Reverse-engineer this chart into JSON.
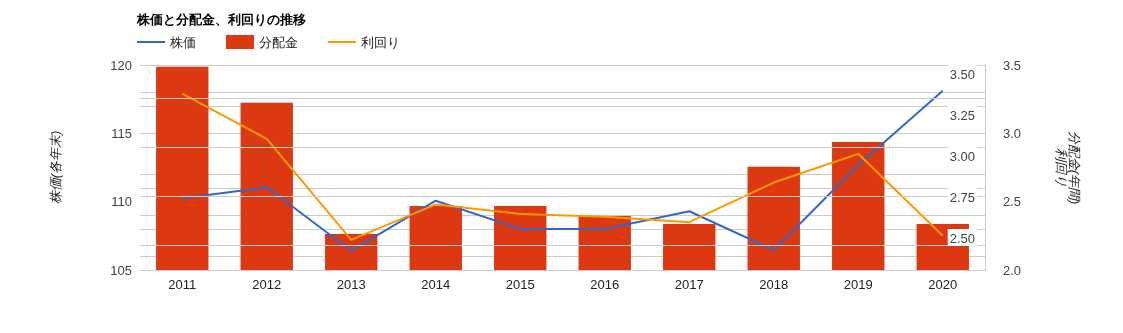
{
  "chart_data": {
    "type": "bar",
    "title": "株価と分配金、利回りの推移",
    "categories": [
      "2011",
      "2012",
      "2013",
      "2014",
      "2015",
      "2016",
      "2017",
      "2018",
      "2019",
      "2020"
    ],
    "series": [
      {
        "name": "株価",
        "type": "line",
        "color": "#3366cc",
        "values": [
          110.25,
          111.05,
          106.41,
          110.07,
          108.0,
          108.0,
          109.3,
          106.46,
          112.68,
          118.12
        ]
      },
      {
        "name": "分配金",
        "axis": "y2",
        "color": "#dc3912",
        "values": [
          3.49,
          3.27,
          2.47,
          2.64,
          2.64,
          2.58,
          2.53,
          2.88,
          3.03,
          2.53
        ]
      },
      {
        "name": "利回り",
        "type": "line",
        "axis": "y3",
        "color": "#ff9900",
        "values": [
          3.29,
          2.96,
          2.22,
          2.48,
          2.41,
          2.39,
          2.35,
          2.64,
          2.85,
          2.25
        ]
      }
    ],
    "ylabel": "株価(各年末)",
    "y2label": "分配金(年間)",
    "y3label": "利回り",
    "ylim": [
      105,
      120
    ],
    "yticks": [
      105,
      110,
      115,
      120
    ],
    "y2lim": [
      2.25,
      3.5
    ],
    "y2ticks": [
      {
        "value": 2.5,
        "label": "2.50"
      },
      {
        "value": 2.75,
        "label": "2.75"
      },
      {
        "value": 3,
        "label": "3.00"
      },
      {
        "value": 3.25,
        "label": "3.25"
      },
      {
        "value": 3.5,
        "label": "3.50"
      }
    ],
    "y3lim": [
      2,
      3.5
    ],
    "y3ticks": [
      {
        "value": 2,
        "label": "2.0"
      },
      {
        "value": 2.5,
        "label": "2.5"
      },
      {
        "value": 3,
        "label": "3.0"
      },
      {
        "value": 3.5,
        "label": "3.5"
      }
    ],
    "grid": true,
    "legend": "top left",
    "marker": "none",
    "line_style": "solid"
  }
}
